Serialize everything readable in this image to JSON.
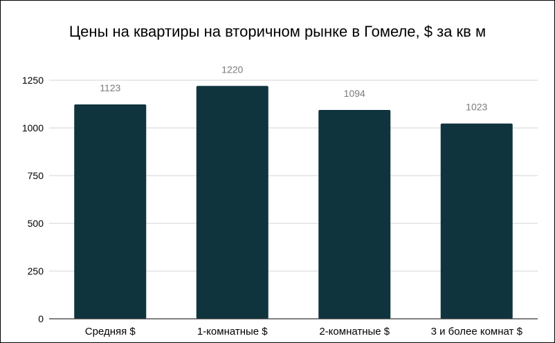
{
  "chart_data": {
    "type": "bar",
    "title": "Цены на квартиры на вторичном рынке в Гомеле, $ за кв м",
    "xlabel": "",
    "ylabel": "",
    "categories": [
      "Средняя $",
      "1-комнатные $",
      "2-комнатные $",
      "3 и более комнат $"
    ],
    "values": [
      1123,
      1220,
      1094,
      1023
    ],
    "value_labels": [
      "1123",
      "1220",
      "1094",
      "1023"
    ],
    "y_ticks": [
      0,
      250,
      500,
      750,
      1000,
      1250
    ],
    "y_tick_labels": [
      "0",
      "250",
      "500",
      "750",
      "1000",
      "1250"
    ],
    "ylim": [
      0,
      1250
    ],
    "grid": true,
    "legend": "none",
    "colors": {
      "bar": "#0f343d",
      "value_label": "#7a7a7a",
      "gridline": "#d3d3d3"
    }
  }
}
